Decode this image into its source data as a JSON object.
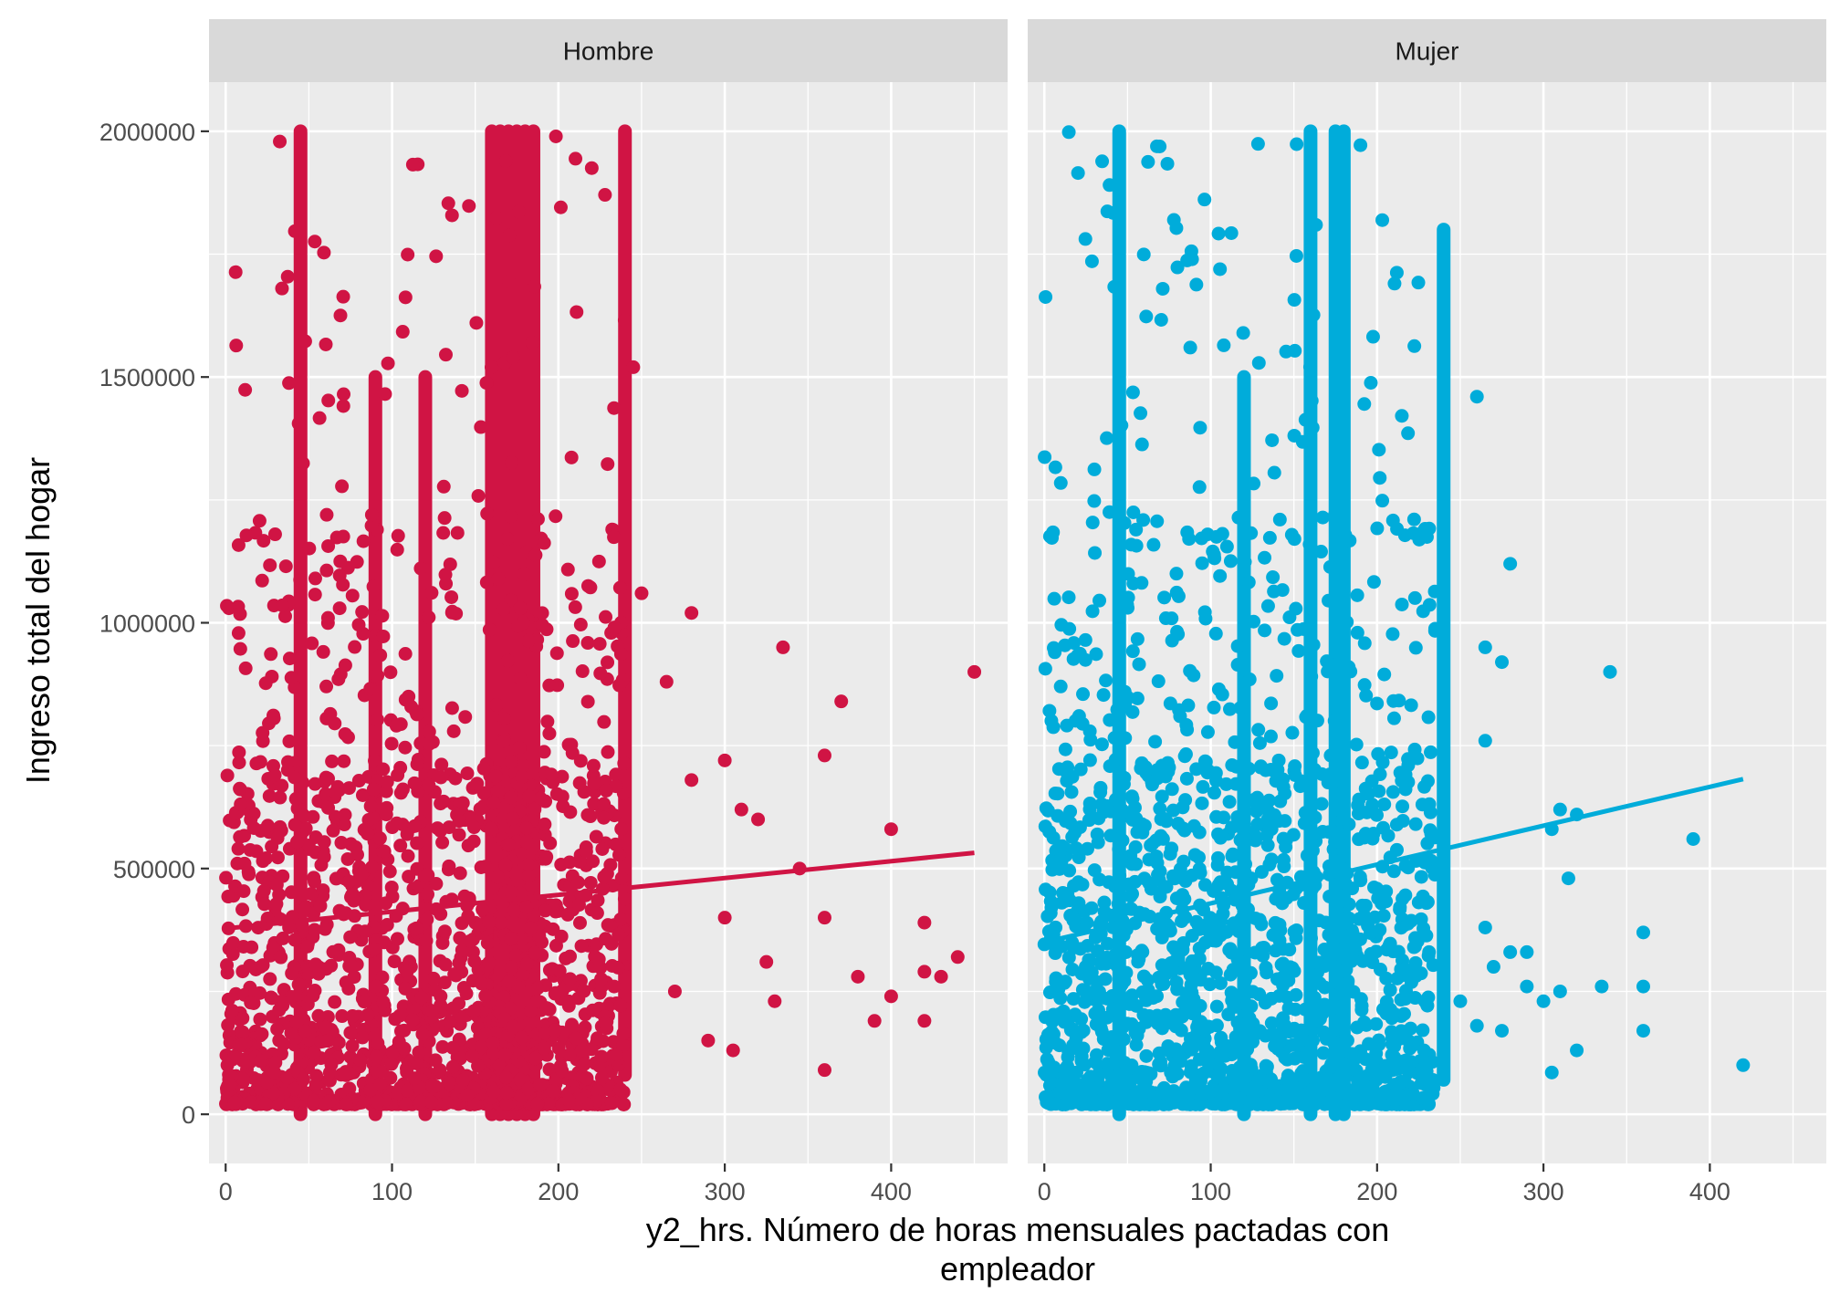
{
  "chart_data": {
    "type": "scatter",
    "facet_labels": [
      "Hombre",
      "Mujer"
    ],
    "xlabel_line1": "y2_hrs. Número de horas mensuales pactadas con",
    "xlabel_line2": "empleador",
    "ylabel": "Ingreso total del hogar",
    "xlim": [
      -10,
      470
    ],
    "ylim": [
      -100000,
      2100000
    ],
    "x_ticks": [
      0,
      100,
      200,
      300,
      400
    ],
    "x_tick_labels": [
      "0",
      "100",
      "200",
      "300",
      "400"
    ],
    "y_ticks": [
      0,
      500000,
      1000000,
      1500000,
      2000000
    ],
    "y_tick_labels": [
      "0",
      "500000",
      "1000000",
      "1500000",
      "2000000"
    ],
    "grid": true,
    "legend": "none",
    "series": [
      {
        "facet": "Hombre",
        "color": "#d01444",
        "vertical_bands": [
          {
            "x": 45,
            "y_min": 0,
            "y_max": 2000000
          },
          {
            "x": 90,
            "y_min": 0,
            "y_max": 1500000
          },
          {
            "x": 120,
            "y_min": 0,
            "y_max": 1500000
          },
          {
            "x": 160,
            "y_min": 0,
            "y_max": 2000000
          },
          {
            "x": 165,
            "y_min": 0,
            "y_max": 2000000
          },
          {
            "x": 170,
            "y_min": 0,
            "y_max": 2000000
          },
          {
            "x": 175,
            "y_min": 0,
            "y_max": 2000000
          },
          {
            "x": 180,
            "y_min": 0,
            "y_max": 2000000
          },
          {
            "x": 185,
            "y_min": 0,
            "y_max": 2000000
          },
          {
            "x": 240,
            "y_min": 80000,
            "y_max": 2000000
          }
        ],
        "outliers": [
          [
            265,
            880000
          ],
          [
            270,
            250000
          ],
          [
            280,
            1020000
          ],
          [
            280,
            680000
          ],
          [
            300,
            720000
          ],
          [
            310,
            620000
          ],
          [
            320,
            600000
          ],
          [
            335,
            950000
          ],
          [
            360,
            730000
          ],
          [
            360,
            400000
          ],
          [
            360,
            90000
          ],
          [
            370,
            840000
          ],
          [
            380,
            280000
          ],
          [
            390,
            190000
          ],
          [
            400,
            580000
          ],
          [
            400,
            240000
          ],
          [
            420,
            390000
          ],
          [
            420,
            290000
          ],
          [
            420,
            190000
          ],
          [
            430,
            280000
          ],
          [
            440,
            320000
          ],
          [
            450,
            900000
          ],
          [
            345,
            500000
          ],
          [
            330,
            230000
          ],
          [
            305,
            130000
          ],
          [
            290,
            150000
          ],
          [
            300,
            400000
          ],
          [
            325,
            310000
          ],
          [
            245,
            1520000
          ],
          [
            250,
            1060000
          ]
        ],
        "trend": {
          "x1": 0,
          "y1": 378000,
          "x2": 450,
          "y2": 532000
        }
      },
      {
        "facet": "Mujer",
        "color": "#00acda",
        "vertical_bands": [
          {
            "x": 45,
            "y_min": 0,
            "y_max": 2000000
          },
          {
            "x": 120,
            "y_min": 0,
            "y_max": 1500000
          },
          {
            "x": 160,
            "y_min": 0,
            "y_max": 2000000
          },
          {
            "x": 175,
            "y_min": 0,
            "y_max": 2000000
          },
          {
            "x": 180,
            "y_min": 0,
            "y_max": 2000000
          },
          {
            "x": 240,
            "y_min": 70000,
            "y_max": 1800000
          }
        ],
        "outliers": [
          [
            260,
            1460000
          ],
          [
            265,
            950000
          ],
          [
            265,
            760000
          ],
          [
            275,
            920000
          ],
          [
            280,
            1120000
          ],
          [
            265,
            380000
          ],
          [
            270,
            300000
          ],
          [
            280,
            330000
          ],
          [
            290,
            330000
          ],
          [
            290,
            260000
          ],
          [
            275,
            170000
          ],
          [
            300,
            230000
          ],
          [
            305,
            580000
          ],
          [
            310,
            620000
          ],
          [
            320,
            610000
          ],
          [
            315,
            480000
          ],
          [
            310,
            250000
          ],
          [
            320,
            130000
          ],
          [
            305,
            85000
          ],
          [
            340,
            900000
          ],
          [
            335,
            260000
          ],
          [
            360,
            370000
          ],
          [
            360,
            260000
          ],
          [
            360,
            170000
          ],
          [
            390,
            560000
          ],
          [
            420,
            100000
          ],
          [
            250,
            230000
          ],
          [
            260,
            180000
          ]
        ],
        "trend": {
          "x1": 0,
          "y1": 350000,
          "x2": 420,
          "y2": 682000
        }
      }
    ]
  }
}
